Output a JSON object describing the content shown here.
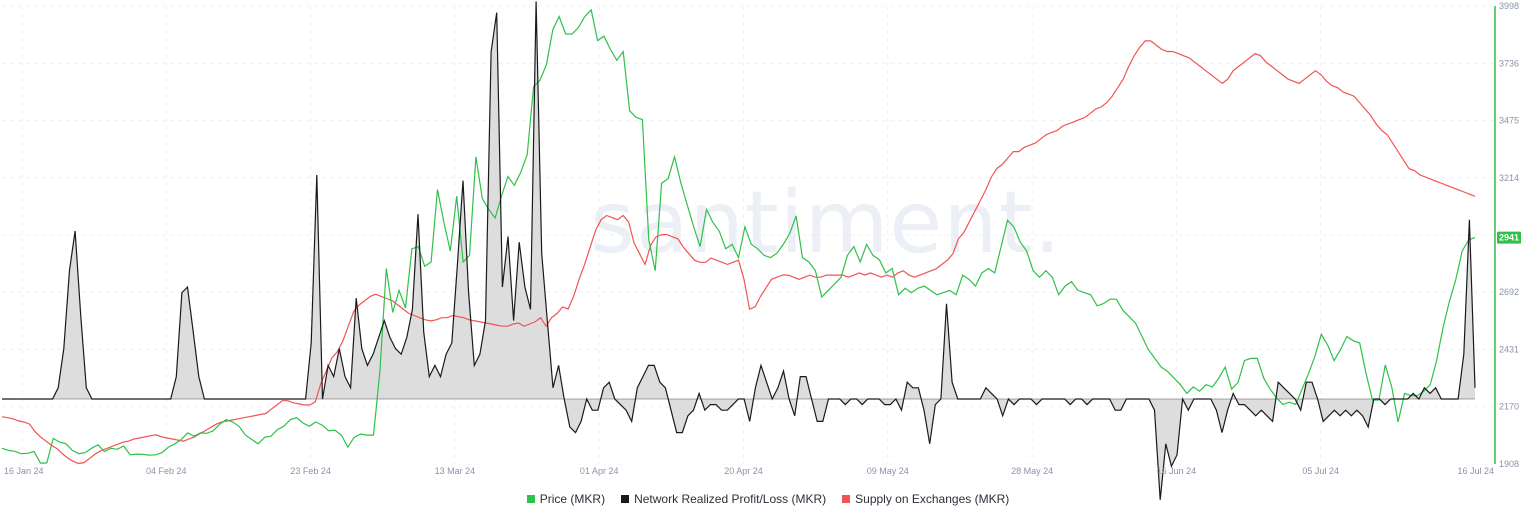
{
  "watermark": "santiment.",
  "colors": {
    "price": "#2fc14a",
    "npl": "#1a1a1a",
    "supply": "#f25454",
    "fill": "#d9d9d9"
  },
  "chart_data": {
    "type": "line",
    "x_tick_labels": [
      "16 Jan 24",
      "04 Feb 24",
      "23 Feb 24",
      "13 Mar 24",
      "01 Apr 24",
      "20 Apr 24",
      "09 May 24",
      "28 May 24",
      "16 Jun 24",
      "05 Jul 24",
      "16 Jul 24"
    ],
    "y_axis_right": {
      "ticks": [
        1908,
        2170,
        2431,
        2692,
        2953,
        3214,
        3475,
        3736,
        3998
      ],
      "range": [
        1908,
        3998
      ],
      "tick_labels": [
        "1908",
        "2170",
        "2431",
        "2692",
        "",
        "3214",
        "3475",
        "3736",
        "3998"
      ]
    },
    "last_price_label": "2941",
    "grid": true,
    "legend_position": "bottom",
    "series": [
      {
        "name": "Price (MKR)",
        "values": [
          1980,
          1970,
          1966,
          1955,
          1957,
          1965,
          1912,
          1913,
          2025,
          2008,
          2000,
          1970,
          1955,
          1960,
          1980,
          1995,
          1965,
          1980,
          1975,
          1990,
          1950,
          1953,
          1952,
          1948,
          1950,
          1960,
          1985,
          2000,
          2020,
          2050,
          2035,
          2050,
          2048,
          2060,
          2090,
          2110,
          2100,
          2080,
          2040,
          2020,
          2000,
          2030,
          2035,
          2065,
          2080,
          2110,
          2120,
          2095,
          2080,
          2100,
          2085,
          2060,
          2062,
          2040,
          1985,
          2030,
          2045,
          2040,
          2040,
          2330,
          2800,
          2600,
          2700,
          2620,
          2890,
          2900,
          2810,
          2830,
          3160,
          3010,
          2880,
          3130,
          2830,
          2860,
          3310,
          3120,
          3070,
          3030,
          3130,
          3220,
          3180,
          3240,
          3320,
          3630,
          3660,
          3730,
          3890,
          3950,
          3870,
          3870,
          3900,
          3950,
          3980,
          3840,
          3860,
          3800,
          3750,
          3790,
          3520,
          3490,
          3480,
          2930,
          2790,
          3190,
          3210,
          3310,
          3190,
          3090,
          2990,
          2900,
          3070,
          3010,
          2970,
          2890,
          2910,
          2850,
          2990,
          2910,
          2890,
          2860,
          2850,
          2870,
          2910,
          2960,
          3040,
          2850,
          2830,
          2790,
          2670,
          2700,
          2730,
          2760,
          2860,
          2900,
          2830,
          2910,
          2860,
          2840,
          2780,
          2800,
          2680,
          2710,
          2690,
          2710,
          2720,
          2700,
          2680,
          2690,
          2700,
          2680,
          2770,
          2750,
          2720,
          2780,
          2800,
          2780,
          2900,
          3020,
          2990,
          2920,
          2880,
          2790,
          2760,
          2790,
          2760,
          2680,
          2720,
          2740,
          2700,
          2690,
          2680,
          2630,
          2640,
          2660,
          2660,
          2610,
          2580,
          2550,
          2490,
          2430,
          2390,
          2350,
          2330,
          2300,
          2270,
          2230,
          2260,
          2240,
          2270,
          2260,
          2300,
          2350,
          2250,
          2280,
          2380,
          2390,
          2390,
          2300,
          2250,
          2210,
          2180,
          2190,
          2180,
          2250,
          2320,
          2400,
          2500,
          2450,
          2380,
          2430,
          2490,
          2470,
          2460,
          2320,
          2200,
          2200,
          2360,
          2260,
          2100,
          2230,
          2220,
          2220,
          2240,
          2270,
          2380,
          2530,
          2650,
          2750,
          2880,
          2930,
          2941
        ]
      },
      {
        "name": "Network Realized Profit/Loss (MKR)",
        "values": [
          0,
          0,
          0,
          0,
          0,
          0,
          0,
          0,
          0,
          0,
          20,
          90,
          230,
          300,
          150,
          20,
          0,
          0,
          0,
          0,
          0,
          0,
          0,
          0,
          0,
          0,
          0,
          0,
          0,
          0,
          0,
          40,
          190,
          200,
          120,
          40,
          0,
          0,
          0,
          0,
          0,
          0,
          0,
          0,
          0,
          0,
          0,
          0,
          0,
          0,
          0,
          0,
          0,
          0,
          0,
          100,
          400,
          0,
          60,
          40,
          90,
          40,
          20,
          180,
          90,
          60,
          80,
          110,
          140,
          110,
          90,
          80,
          110,
          160,
          330,
          120,
          40,
          60,
          40,
          80,
          100,
          240,
          390,
          190,
          60,
          80,
          140,
          620,
          690,
          200,
          290,
          140,
          280,
          200,
          160,
          710,
          260,
          140,
          20,
          60,
          0,
          -50,
          -60,
          -40,
          0,
          -20,
          -20,
          20,
          30,
          0,
          -10,
          -20,
          -40,
          20,
          40,
          60,
          60,
          30,
          20,
          -20,
          -60,
          -60,
          -30,
          -20,
          10,
          -20,
          -10,
          -10,
          -20,
          -20,
          -10,
          0,
          0,
          -40,
          20,
          60,
          30,
          0,
          20,
          50,
          0,
          -30,
          40,
          40,
          0,
          -40,
          -40,
          0,
          0,
          0,
          -10,
          0,
          0,
          -10,
          0,
          0,
          0,
          -10,
          -10,
          0,
          -20,
          30,
          20,
          20,
          -20,
          -80,
          -10,
          0,
          170,
          30,
          0,
          0,
          0,
          0,
          0,
          20,
          10,
          0,
          -30,
          0,
          -10,
          0,
          0,
          0,
          -10,
          0,
          0,
          0,
          0,
          0,
          -10,
          0,
          0,
          -10,
          0,
          0,
          0,
          0,
          -20,
          -20,
          0,
          0,
          0,
          0,
          0,
          -20,
          -180,
          -80,
          -120,
          -100,
          0,
          -20,
          0,
          0,
          0,
          0,
          -20,
          -60,
          -20,
          10,
          -10,
          -10,
          -20,
          -30,
          -20,
          -30,
          -40,
          30,
          20,
          10,
          0,
          -20,
          30,
          30,
          0,
          -40,
          -30,
          -20,
          -30,
          -20,
          -30,
          -20,
          -30,
          -50,
          0,
          0,
          -10,
          0,
          0,
          0,
          0,
          10,
          0,
          20,
          10,
          20,
          0,
          0,
          0,
          0,
          80,
          320,
          20
        ]
      },
      {
        "name": "Supply on Exchanges (MKR)",
        "values": [
          2135,
          2130,
          2125,
          2115,
          2110,
          2100,
          2065,
          2040,
          2020,
          2000,
          1985,
          1960,
          1940,
          1925,
          1915,
          1920,
          1940,
          1960,
          1975,
          1985,
          1995,
          2005,
          2015,
          2020,
          2030,
          2035,
          2040,
          2045,
          2050,
          2040,
          2035,
          2030,
          2025,
          2020,
          2030,
          2040,
          2055,
          2070,
          2085,
          2100,
          2110,
          2115,
          2120,
          2125,
          2130,
          2135,
          2140,
          2145,
          2150,
          2170,
          2190,
          2210,
          2210,
          2200,
          2195,
          2190,
          2190,
          2205,
          2290,
          2350,
          2410,
          2440,
          2490,
          2560,
          2630,
          2660,
          2680,
          2700,
          2710,
          2700,
          2690,
          2680,
          2660,
          2640,
          2620,
          2610,
          2600,
          2590,
          2585,
          2590,
          2600,
          2600,
          2610,
          2605,
          2600,
          2590,
          2585,
          2580,
          2575,
          2570,
          2565,
          2560,
          2560,
          2570,
          2575,
          2560,
          2570,
          2580,
          2600,
          2560,
          2600,
          2620,
          2650,
          2640,
          2700,
          2780,
          2850,
          2930,
          3010,
          3060,
          3080,
          3070,
          3060,
          3080,
          3050,
          2950,
          2900,
          2850,
          2940,
          2980,
          2990,
          2990,
          2980,
          2970,
          2930,
          2900,
          2870,
          2860,
          2860,
          2880,
          2870,
          2860,
          2850,
          2860,
          2870,
          2780,
          2640,
          2650,
          2700,
          2740,
          2780,
          2790,
          2800,
          2800,
          2790,
          2780,
          2790,
          2800,
          2790,
          2790,
          2800,
          2800,
          2800,
          2800,
          2790,
          2800,
          2810,
          2800,
          2810,
          2800,
          2790,
          2800,
          2790,
          2810,
          2820,
          2800,
          2790,
          2800,
          2810,
          2820,
          2830,
          2850,
          2870,
          2900,
          2970,
          3000,
          3050,
          3100,
          3150,
          3200,
          3260,
          3300,
          3320,
          3350,
          3380,
          3380,
          3400,
          3410,
          3420,
          3440,
          3460,
          3470,
          3480,
          3500,
          3510,
          3520,
          3530,
          3540,
          3560,
          3580,
          3590,
          3610,
          3640,
          3680,
          3720,
          3780,
          3830,
          3870,
          3900,
          3900,
          3880,
          3860,
          3850,
          3850,
          3840,
          3830,
          3820,
          3800,
          3780,
          3760,
          3740,
          3720,
          3700,
          3720,
          3760,
          3780,
          3800,
          3820,
          3840,
          3830,
          3800,
          3780,
          3760,
          3740,
          3720,
          3710,
          3700,
          3720,
          3740,
          3760,
          3740,
          3710,
          3690,
          3680,
          3660,
          3650,
          3640,
          3610,
          3580,
          3550,
          3510,
          3480,
          3460,
          3420,
          3380,
          3340,
          3300,
          3290,
          3270,
          3260,
          3250,
          3240,
          3230,
          3220,
          3210,
          3200,
          3190,
          3180,
          3170
        ]
      }
    ]
  },
  "legend": [
    {
      "label": "Price (MKR)",
      "color": "#2fc14a"
    },
    {
      "label": "Network Realized Profit/Loss (MKR)",
      "color": "#1a1a1a"
    },
    {
      "label": "Supply on Exchanges (MKR)",
      "color": "#f25454"
    }
  ]
}
